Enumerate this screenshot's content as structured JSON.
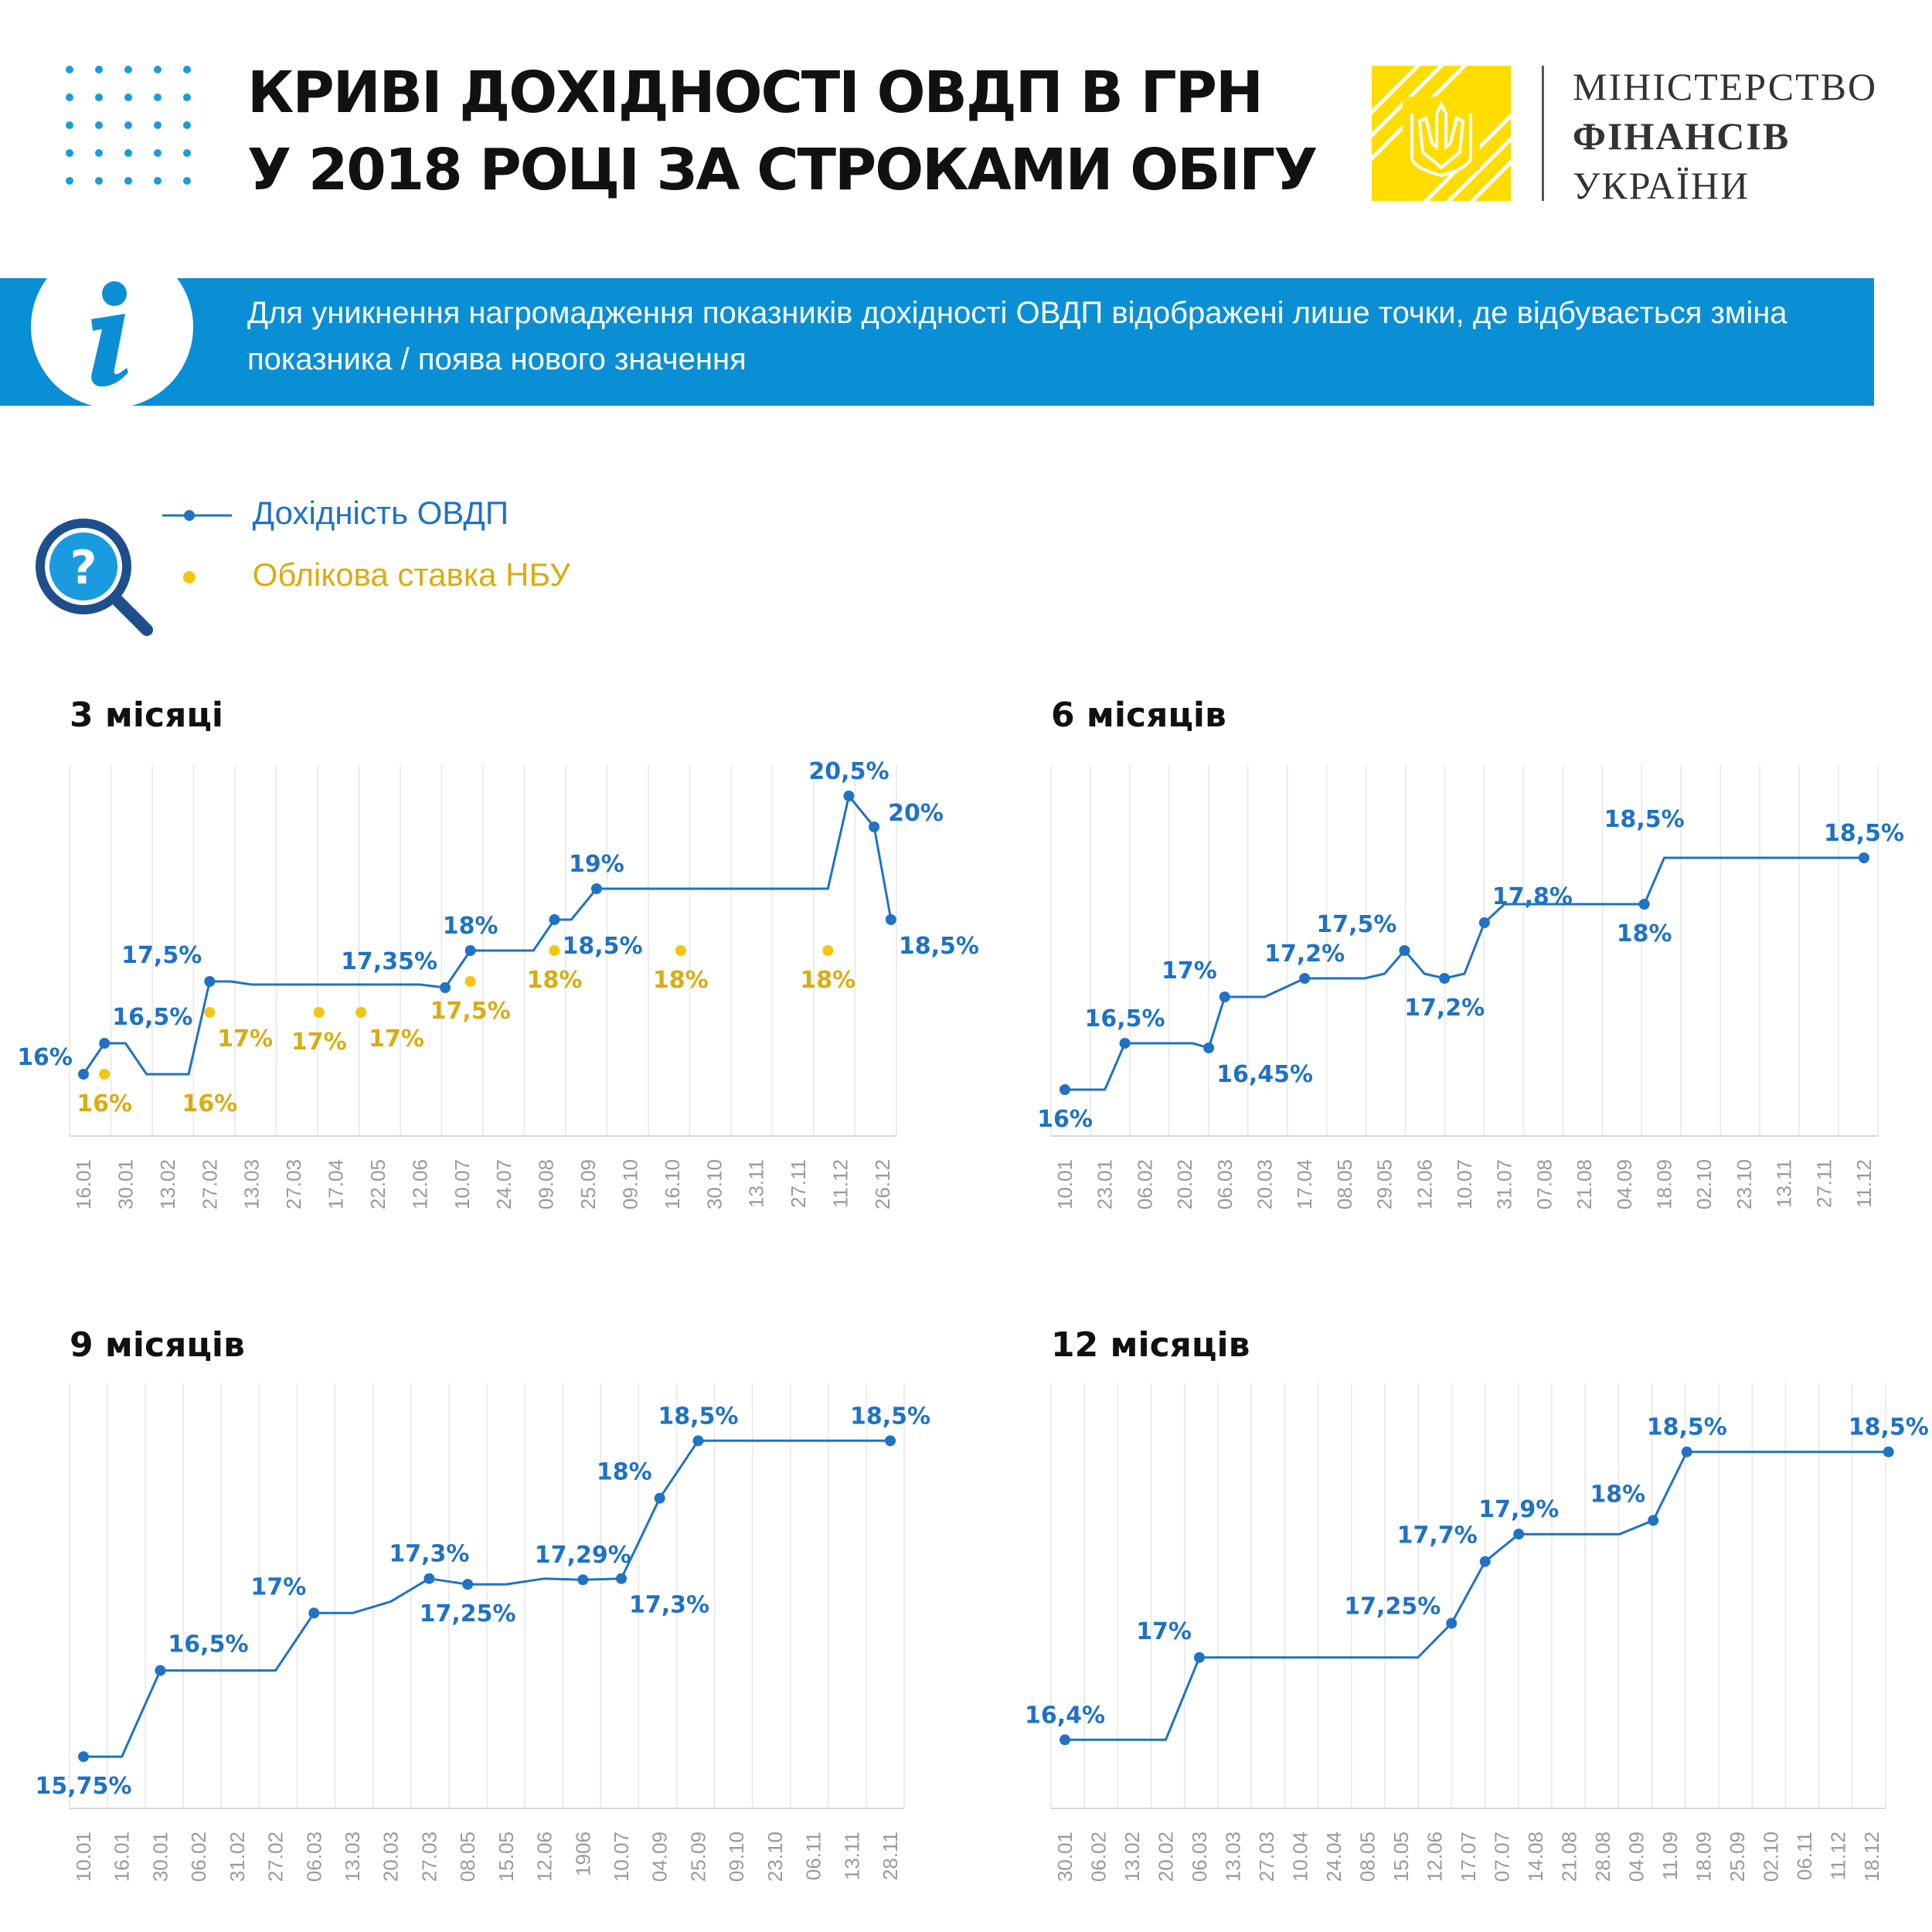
{
  "header": {
    "title_line1": "КРИВІ ДОХІДНОСТІ ОВДП В ГРН",
    "title_line2": "У 2018 РОЦІ ЗА СТРОКАМИ ОБІГУ",
    "ministry_line1": "МІНІСТЕРСТВО",
    "ministry_line2": "ФІНАНСІВ",
    "ministry_line3": "УКРАЇНИ",
    "logo_icon": "trident-emblem-icon"
  },
  "info": {
    "icon": "info-icon",
    "text": "Для уникнення нагромадження показників дохідності ОВДП відображені лише точки, де відбувається зміна показника / поява нового значення"
  },
  "legend": {
    "icon": "magnifier-question-icon",
    "yield_label": "Дохідність ОВДП",
    "nbu_label": "Облікова ставка НБУ"
  },
  "colors": {
    "yield": "#1f72c4",
    "nbu": "#f2c50f",
    "nbu_text": "#d9ac12",
    "band": "#0a8fd4",
    "logo": "#ffdd00",
    "grid": "#e6e6e6",
    "tick": "#9a9a9a"
  },
  "chart_data": [
    {
      "type": "line",
      "title": "3 місяці",
      "ylim": [
        15,
        21
      ],
      "categories": [
        "16.01",
        "30.01",
        "13.02",
        "27.02",
        "13.03",
        "27.03",
        "17.04",
        "22.05",
        "12.06",
        "10.07",
        "24.07",
        "09.08",
        "25.09",
        "09.10",
        "16.10",
        "30.10",
        "13.11",
        "27.11",
        "11.12",
        "26.12"
      ],
      "series": [
        {
          "kind": "yield",
          "points": [
            {
              "x": 0,
              "y": 16,
              "marker": true,
              "label": "16%",
              "pos": "left"
            },
            {
              "x": 0.5,
              "y": 16.5,
              "marker": true,
              "label": "16,5%",
              "pos": "above-right"
            },
            {
              "x": 1,
              "y": 16.5
            },
            {
              "x": 1.5,
              "y": 16
            },
            {
              "x": 2.5,
              "y": 16
            },
            {
              "x": 3,
              "y": 17.5,
              "marker": true,
              "label": "17,5%",
              "pos": "above-left"
            },
            {
              "x": 3.5,
              "y": 17.5
            },
            {
              "x": 4,
              "y": 17.45
            },
            {
              "x": 8,
              "y": 17.45
            },
            {
              "x": 8.6,
              "y": 17.4,
              "marker": true,
              "label": "17,35%",
              "pos": "above-left"
            },
            {
              "x": 9.2,
              "y": 18,
              "marker": true,
              "label": "18%",
              "pos": "above"
            },
            {
              "x": 10.7,
              "y": 18
            },
            {
              "x": 11.2,
              "y": 18.5,
              "marker": true
            },
            {
              "x": 11.6,
              "y": 18.5
            },
            {
              "x": 12.2,
              "y": 19,
              "marker": true,
              "label": "19%",
              "pos": "above"
            },
            {
              "x": 17.7,
              "y": 19
            },
            {
              "x": 18.2,
              "y": 20.5,
              "marker": true,
              "label": "20,5%",
              "pos": "above"
            },
            {
              "x": 18.8,
              "y": 20,
              "marker": true,
              "label": "20%",
              "pos": "right"
            },
            {
              "x": 19.2,
              "y": 18.5,
              "marker": true,
              "label": "18,5%",
              "pos": "below-right"
            }
          ],
          "extra_labels": [
            {
              "x": 11.2,
              "y": 18.5,
              "label": "18,5%",
              "pos": "below-right"
            }
          ]
        },
        {
          "kind": "nbu",
          "points": [
            {
              "x": 0.5,
              "y": 16,
              "label": "16%",
              "pos": "below"
            },
            {
              "x": 3,
              "y": 17,
              "label": "17%",
              "pos": "below-right"
            },
            {
              "x": 5.6,
              "y": 17,
              "label": "17%",
              "pos": "below"
            },
            {
              "x": 6.6,
              "y": 17,
              "label": "17%",
              "pos": "below-right"
            },
            {
              "x": 9.2,
              "y": 17.5,
              "label": "17,5%",
              "pos": "below"
            },
            {
              "x": 11.2,
              "y": 18,
              "label": "18%",
              "pos": "below"
            },
            {
              "x": 14.2,
              "y": 18,
              "label": "18%",
              "pos": "below"
            },
            {
              "x": 17.7,
              "y": 18,
              "label": "18%",
              "pos": "below"
            }
          ],
          "extra_labels": [
            {
              "x": 3,
              "y": 16,
              "label": "16%",
              "pos": "below"
            }
          ]
        }
      ]
    },
    {
      "type": "line",
      "title": "6 місяців",
      "ylim": [
        15.5,
        19.5
      ],
      "categories": [
        "10.01",
        "23.01",
        "06.02",
        "20.02",
        "06.03",
        "20.03",
        "17.04",
        "08.05",
        "29.05",
        "12.06",
        "10.07",
        "31.07",
        "07.08",
        "21.08",
        "04.09",
        "18.09",
        "02.10",
        "23.10",
        "13.11",
        "27.11",
        "11.12"
      ],
      "series": [
        {
          "kind": "yield",
          "points": [
            {
              "x": 0,
              "y": 16,
              "marker": true,
              "label": "16%",
              "pos": "below"
            },
            {
              "x": 1,
              "y": 16
            },
            {
              "x": 1.5,
              "y": 16.5,
              "marker": true,
              "label": "16,5%",
              "pos": "above"
            },
            {
              "x": 3.2,
              "y": 16.5
            },
            {
              "x": 3.6,
              "y": 16.45,
              "marker": true,
              "label": "16,45%",
              "pos": "below-right"
            },
            {
              "x": 4,
              "y": 17,
              "marker": true,
              "label": "17%",
              "pos": "above-left"
            },
            {
              "x": 5,
              "y": 17
            },
            {
              "x": 5.5,
              "y": 17.1
            },
            {
              "x": 6,
              "y": 17.2,
              "marker": true,
              "label": "17,2%",
              "pos": "above"
            },
            {
              "x": 7.5,
              "y": 17.2
            },
            {
              "x": 8,
              "y": 17.25
            },
            {
              "x": 8.5,
              "y": 17.5,
              "marker": true,
              "label": "17,5%",
              "pos": "above-left"
            },
            {
              "x": 9,
              "y": 17.25
            },
            {
              "x": 9.5,
              "y": 17.2,
              "marker": true,
              "label": "17,2%",
              "pos": "below"
            },
            {
              "x": 10,
              "y": 17.25
            },
            {
              "x": 10.5,
              "y": 17.8,
              "marker": true,
              "label": "17,8%",
              "pos": "above-right"
            },
            {
              "x": 11,
              "y": 18
            },
            {
              "x": 14,
              "y": 18
            },
            {
              "x": 14.5,
              "y": 18,
              "marker": true,
              "label": "18%",
              "pos": "below"
            },
            {
              "x": 15,
              "y": 18.5
            },
            {
              "x": 20,
              "y": 18.5,
              "marker": true,
              "label": "18,5%",
              "pos": "above"
            }
          ],
          "extra_labels": [
            {
              "x": 14.5,
              "y": 18.5,
              "label": "18,5%",
              "pos": "above-high"
            }
          ]
        }
      ]
    },
    {
      "type": "line",
      "title": "9 місяців",
      "ylim": [
        15.3,
        19
      ],
      "categories": [
        "10.01",
        "16.01",
        "30.01",
        "06.02",
        "31.02",
        "27.02",
        "06.03",
        "13.03",
        "20.03",
        "27.03",
        "08.05",
        "15.05",
        "12.06",
        "1906",
        "10.07",
        "04.09",
        "25.09",
        "09.10",
        "23.10",
        "06.11",
        "13.11",
        "28.11"
      ],
      "series": [
        {
          "kind": "yield",
          "points": [
            {
              "x": 0,
              "y": 15.75,
              "marker": true,
              "label": "15,75%",
              "pos": "below"
            },
            {
              "x": 1,
              "y": 15.75
            },
            {
              "x": 2,
              "y": 16.5,
              "marker": true,
              "label": "16,5%",
              "pos": "above-right"
            },
            {
              "x": 5,
              "y": 16.5
            },
            {
              "x": 6,
              "y": 17,
              "marker": true,
              "label": "17%",
              "pos": "above-left"
            },
            {
              "x": 7,
              "y": 17
            },
            {
              "x": 8,
              "y": 17.1
            },
            {
              "x": 9,
              "y": 17.3,
              "marker": true,
              "label": "17,3%",
              "pos": "above"
            },
            {
              "x": 10,
              "y": 17.25,
              "marker": true,
              "label": "17,25%",
              "pos": "below"
            },
            {
              "x": 11,
              "y": 17.25
            },
            {
              "x": 12,
              "y": 17.3
            },
            {
              "x": 13,
              "y": 17.29,
              "marker": true,
              "label": "17,29%",
              "pos": "above"
            },
            {
              "x": 14,
              "y": 17.3,
              "marker": true,
              "label": "17,3%",
              "pos": "below-right"
            },
            {
              "x": 15,
              "y": 18,
              "marker": true,
              "label": "18%",
              "pos": "above-left"
            },
            {
              "x": 16,
              "y": 18.5,
              "marker": true,
              "label": "18,5%",
              "pos": "above"
            },
            {
              "x": 21,
              "y": 18.5,
              "marker": true,
              "label": "18,5%",
              "pos": "above"
            }
          ]
        }
      ]
    },
    {
      "type": "line",
      "title": "12 місяців",
      "ylim": [
        15.9,
        19
      ],
      "categories": [
        "30.01",
        "06.02",
        "13.02",
        "20.02",
        "06.03",
        "13.03",
        "27.03",
        "10.04",
        "24.04",
        "08.05",
        "15.05",
        "12.06",
        "17.07",
        "07.07",
        "14.08",
        "21.08",
        "28.08",
        "04.09",
        "11.09",
        "18.09",
        "25.09",
        "02.10",
        "06.11",
        "11.12",
        "18.12"
      ],
      "series": [
        {
          "kind": "yield",
          "points": [
            {
              "x": 0,
              "y": 16.4,
              "marker": true,
              "label": "16,4%",
              "pos": "above"
            },
            {
              "x": 3,
              "y": 16.4
            },
            {
              "x": 4,
              "y": 17,
              "marker": true,
              "label": "17%",
              "pos": "above-left"
            },
            {
              "x": 10.5,
              "y": 17
            },
            {
              "x": 11.5,
              "y": 17.25,
              "marker": true,
              "label": "17,25%",
              "pos": "left"
            },
            {
              "x": 12.5,
              "y": 17.7,
              "marker": true,
              "label": "17,7%",
              "pos": "above-left"
            },
            {
              "x": 13.5,
              "y": 17.9,
              "marker": true,
              "label": "17,9%",
              "pos": "above"
            },
            {
              "x": 16.5,
              "y": 17.9
            },
            {
              "x": 17.5,
              "y": 18,
              "marker": true,
              "label": "18%",
              "pos": "above-left"
            },
            {
              "x": 18.5,
              "y": 18.5,
              "marker": true,
              "label": "18,5%",
              "pos": "above"
            },
            {
              "x": 24.5,
              "y": 18.5,
              "marker": true,
              "label": "18,5%",
              "pos": "above"
            }
          ]
        }
      ]
    }
  ]
}
